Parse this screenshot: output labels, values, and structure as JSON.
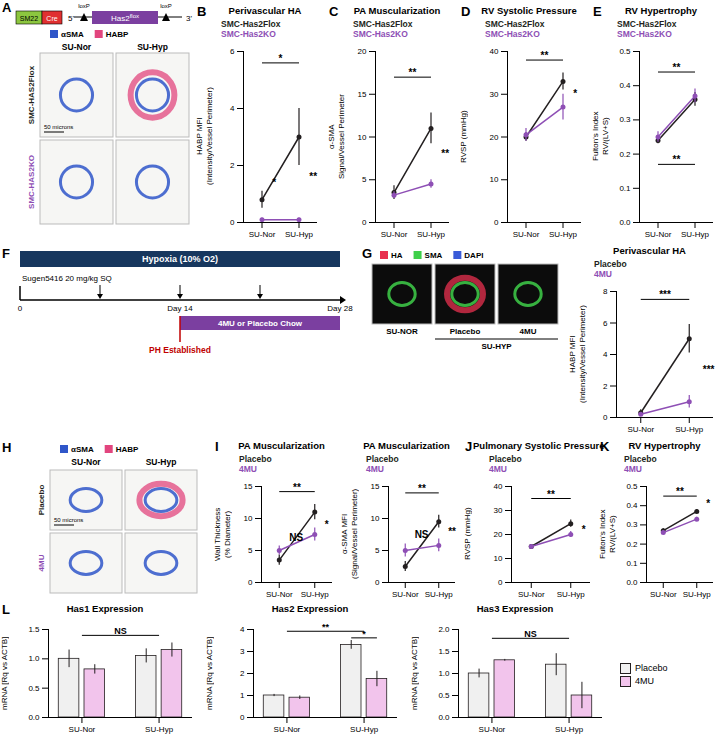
{
  "chart_data": [
    {
      "panel_label": "B",
      "type": "line",
      "title": "Perivascular HA",
      "y_label": "HABP MFI\n(Intensity/Vessel Perimeter)",
      "categories": [
        "SU-Nor",
        "SU-Hyp"
      ],
      "series": [
        {
          "name": "SMC-Has2Flox",
          "color": "#231f20",
          "values": [
            0.8,
            3.0
          ],
          "errors": [
            0.3,
            1.0
          ]
        },
        {
          "name": "SMC-Has2KO",
          "color": "#8e4fb5",
          "values": [
            0.1,
            0.1
          ],
          "errors": [
            0.05,
            0.05
          ]
        }
      ],
      "ylim": [
        0,
        6
      ],
      "yticks": [
        0,
        2,
        4,
        6
      ],
      "legend": "top-left",
      "annotations": [
        {
          "text": "*",
          "x": [
            "SU-Nor",
            "SU-Hyp"
          ],
          "y": 5.6
        },
        {
          "text": "*",
          "x": [
            "SU-Nor",
            "SU-Nor"
          ],
          "y": 1.4
        },
        {
          "text": "**",
          "x": [
            "SU-Hyp",
            "SU-Hyp"
          ],
          "y": 1.6
        }
      ]
    },
    {
      "panel_label": "C",
      "type": "line",
      "title": "PA Muscularization",
      "y_label": "α-SMA\nSignal/Vessel Perimeter",
      "categories": [
        "SU-Nor",
        "SU-Hyp"
      ],
      "series": [
        {
          "name": "SMC-Has2Flox",
          "color": "#231f20",
          "values": [
            3.5,
            11
          ],
          "errors": [
            0.8,
            1.8
          ]
        },
        {
          "name": "SMC-Has2KO",
          "color": "#8e4fb5",
          "values": [
            3.2,
            4.5
          ],
          "errors": [
            0.4,
            0.5
          ]
        }
      ],
      "ylim": [
        0,
        20
      ],
      "yticks": [
        0,
        5,
        10,
        15,
        20
      ],
      "legend": "top-left",
      "annotations": [
        {
          "text": "**",
          "x": [
            "SU-Nor",
            "SU-Hyp"
          ],
          "y": 17
        },
        {
          "text": "**",
          "x": [
            "SU-Hyp",
            "SU-Hyp"
          ],
          "y": 8
        }
      ]
    },
    {
      "panel_label": "D",
      "type": "line",
      "title": "RV Systolic Pressure",
      "y_label": "RVSP (mmHg)",
      "categories": [
        "SU-Nor",
        "SU-Hyp"
      ],
      "series": [
        {
          "name": "SMC-Has2Flox",
          "color": "#231f20",
          "values": [
            20,
            33
          ],
          "errors": [
            1,
            2
          ]
        },
        {
          "name": "SMC-Has2KO",
          "color": "#8e4fb5",
          "values": [
            20.5,
            27
          ],
          "errors": [
            1.5,
            3
          ]
        }
      ],
      "ylim": [
        0,
        40
      ],
      "yticks": [
        0,
        10,
        20,
        30,
        40
      ],
      "legend": "top-left",
      "annotations": [
        {
          "text": "**",
          "x": [
            "SU-Nor",
            "SU-Hyp"
          ],
          "y": 38
        },
        {
          "text": "*",
          "x": [
            "SU-Hyp",
            "SU-Hyp"
          ],
          "y": 30
        }
      ]
    },
    {
      "panel_label": "E",
      "type": "line",
      "title": "RV Hypertrophy",
      "y_label": "Fulton's Index\nRV/(LV+S)",
      "categories": [
        "SU-Nor",
        "SU-Hyp"
      ],
      "series": [
        {
          "name": "SMC-Has2Flox",
          "color": "#231f20",
          "values": [
            0.24,
            0.36
          ],
          "errors": [
            0.01,
            0.02
          ]
        },
        {
          "name": "SMC-Has2KO",
          "color": "#8e4fb5",
          "values": [
            0.25,
            0.37
          ],
          "errors": [
            0.015,
            0.02
          ]
        }
      ],
      "ylim": [
        0,
        0.5
      ],
      "yticks": [
        {
          "value": 0,
          "label": "0.0"
        },
        0.1,
        0.2,
        0.3,
        0.4,
        0.5
      ],
      "legend": "top-left",
      "annotations": [
        {
          "text": "**",
          "x": [
            "SU-Nor",
            "SU-Hyp"
          ],
          "y": 0.44
        },
        {
          "text": "**",
          "x": [
            "SU-Nor",
            "SU-Hyp"
          ],
          "y": 0.17
        }
      ]
    },
    {
      "type": "line",
      "title": "Perivascular HA",
      "y_label": "HABP MFI\n(Intensity/Vessel Perimeter)",
      "categories": [
        "SU-Nor",
        "SU-Hyp"
      ],
      "series": [
        {
          "name": "Placebo",
          "color": "#231f20",
          "values": [
            0.3,
            5.0
          ],
          "errors": [
            0.2,
            0.9
          ]
        },
        {
          "name": "4MU",
          "color": "#8e4fb5",
          "values": [
            0.2,
            1.0
          ],
          "errors": [
            0.1,
            0.4
          ]
        }
      ],
      "ylim": [
        0,
        8
      ],
      "yticks": [
        0,
        2,
        4,
        6,
        8
      ],
      "legend": "top-left",
      "annotations": [
        {
          "text": "***",
          "x": [
            "SU-Nor",
            "SU-Hyp"
          ],
          "y": 7.5
        },
        {
          "text": "***",
          "x": [
            "SU-Hyp",
            "SU-Hyp"
          ],
          "y": 3
        }
      ]
    },
    {
      "panel_label": "I",
      "type": "line",
      "title": "PA Muscularization",
      "y_label": "Wall Thickness\n(% Diameter)",
      "categories": [
        "SU-Nor",
        "SU-Hyp"
      ],
      "series": [
        {
          "name": "Placebo",
          "color": "#231f20",
          "values": [
            3.5,
            11
          ],
          "errors": [
            0.8,
            1.2
          ]
        },
        {
          "name": "4MU",
          "color": "#8e4fb5",
          "values": [
            5,
            7.5
          ],
          "errors": [
            0.7,
            1.0
          ]
        }
      ],
      "ylim": [
        0,
        15
      ],
      "yticks": [
        0,
        5,
        10,
        15
      ],
      "legend": "top-left",
      "annotations": [
        {
          "text": "NS",
          "x": [
            "SU-Nor",
            "SU-Nor"
          ],
          "y": 7
        },
        {
          "text": "**",
          "x": [
            "SU-Nor",
            "SU-Hyp"
          ],
          "y": 14.2
        },
        {
          "text": "*",
          "x": [
            "SU-Hyp",
            "SU-Hyp"
          ],
          "y": 9
        }
      ]
    },
    {
      "type": "line",
      "title": "PA Muscularization",
      "y_label": "α-SMA MFI\n(Signal/Vessel Perimeter)",
      "categories": [
        "SU-Nor",
        "SU-Hyp"
      ],
      "series": [
        {
          "name": "Placebo",
          "color": "#231f20",
          "values": [
            2.5,
            9.5
          ],
          "errors": [
            0.8,
            1.0
          ]
        },
        {
          "name": "4MU",
          "color": "#8e4fb5",
          "values": [
            5,
            5.8
          ],
          "errors": [
            1,
            1
          ]
        }
      ],
      "ylim": [
        0,
        15
      ],
      "yticks": [
        0,
        5,
        10,
        15
      ],
      "legend": "top-left",
      "annotations": [
        {
          "text": "NS",
          "x": [
            "SU-Nor",
            "SU-Nor"
          ],
          "y": 7.5
        },
        {
          "text": "**",
          "x": [
            "SU-Nor",
            "SU-Hyp"
          ],
          "y": 14
        },
        {
          "text": "**",
          "x": [
            "SU-Hyp",
            "SU-Hyp"
          ],
          "y": 8
        }
      ]
    },
    {
      "panel_label": "J",
      "type": "line",
      "title": "Pulmonary Systolic Pressure",
      "y_label": "RVSP (mmHg)",
      "categories": [
        "SU-Nor",
        "SU-Hyp"
      ],
      "series": [
        {
          "name": "Placebo",
          "color": "#231f20",
          "values": [
            15,
            24.5
          ],
          "errors": [
            0.8,
            1.5
          ]
        },
        {
          "name": "4MU",
          "color": "#8e4fb5",
          "values": [
            15,
            20
          ],
          "errors": [
            0.8,
            1.2
          ]
        }
      ],
      "ylim": [
        0,
        40
      ],
      "yticks": [
        0,
        10,
        20,
        30,
        40
      ],
      "legend": "top-left",
      "annotations": [
        {
          "text": "**",
          "x": [
            "SU-Nor",
            "SU-Hyp"
          ],
          "y": 35
        },
        {
          "text": "*",
          "x": [
            "SU-Hyp",
            "SU-Hyp"
          ],
          "y": 22
        }
      ]
    },
    {
      "panel_label": "K",
      "type": "line",
      "title": "RV Hypertrophy",
      "y_label": "Fulton's Index\nRV/(LV+S)",
      "categories": [
        "SU-Nor",
        "SU-Hyp"
      ],
      "series": [
        {
          "name": "Placebo",
          "color": "#231f20",
          "values": [
            0.27,
            0.37
          ],
          "errors": [
            0.01,
            0.01
          ]
        },
        {
          "name": "4MU",
          "color": "#8e4fb5",
          "values": [
            0.26,
            0.33
          ],
          "errors": [
            0.01,
            0.01
          ]
        }
      ],
      "ylim": [
        0,
        0.5
      ],
      "yticks": [
        {
          "value": 0,
          "label": "0.0"
        },
        0.1,
        0.2,
        0.3,
        0.4,
        0.5
      ],
      "legend": "top-left",
      "annotations": [
        {
          "text": "**",
          "x": [
            "SU-Nor",
            "SU-Hyp"
          ],
          "y": 0.45
        },
        {
          "text": "*",
          "x": [
            "SU-Hyp",
            "SU-Hyp"
          ],
          "y": 0.41
        }
      ]
    },
    {
      "panel_label": "L",
      "type": "bar",
      "title": "Has1 Expression",
      "y_label": "mRNA [Rq vs ACTB]",
      "categories": [
        "SU-Nor",
        "SU-Hyp"
      ],
      "series": [
        {
          "name": "Placebo",
          "color": "#f0f0f0",
          "values": [
            1.0,
            1.05
          ],
          "errors": [
            0.15,
            0.12
          ]
        },
        {
          "name": "4MU",
          "color": "#f2c4ec",
          "values": [
            0.82,
            1.15
          ],
          "errors": [
            0.08,
            0.12
          ]
        }
      ],
      "ylim": [
        0,
        1.5
      ],
      "yticks": [
        {
          "value": 0,
          "label": "0.0"
        },
        0.5,
        {
          "value": 1,
          "label": "1.0"
        },
        1.5
      ],
      "annotations": [
        {
          "text": "NS",
          "x": [
            "SU-Nor",
            "SU-Hyp"
          ],
          "y": 1.4
        }
      ]
    },
    {
      "type": "bar",
      "title": "Has2 Expression",
      "y_label": "mRNA [Rq vs ACTB]",
      "categories": [
        "SU-Nor",
        "SU-Hyp"
      ],
      "series": [
        {
          "name": "Placebo",
          "color": "#f0f0f0",
          "values": [
            1.0,
            3.3
          ],
          "errors": [
            0.05,
            0.2
          ]
        },
        {
          "name": "4MU",
          "color": "#f2c4ec",
          "values": [
            0.9,
            1.75
          ],
          "errors": [
            0.08,
            0.35
          ]
        }
      ],
      "ylim": [
        0,
        4
      ],
      "yticks": [
        0,
        1,
        2,
        3,
        4
      ],
      "annotations": [
        {
          "text": "**",
          "x": [
            "SU-Nor",
            "SU-Hyp"
          ],
          "y": 3.92
        },
        {
          "text": "*",
          "x": [
            "SU-Hyp",
            "SU-Hyp"
          ],
          "y": 3.62
        }
      ]
    },
    {
      "type": "bar",
      "title": "Has3 Expression",
      "y_label": "mRNA [Rq vs ACTB]",
      "categories": [
        "SU-Nor",
        "SU-Hyp"
      ],
      "series": [
        {
          "name": "Placebo",
          "color": "#f0f0f0",
          "values": [
            1.0,
            1.2
          ],
          "errors": [
            0.1,
            0.25
          ]
        },
        {
          "name": "4MU",
          "color": "#f2c4ec",
          "values": [
            1.3,
            0.5
          ],
          "errors": [
            0.02,
            0.3
          ]
        }
      ],
      "ylim": [
        0,
        2
      ],
      "yticks": [
        {
          "value": 0,
          "label": "0.0"
        },
        0.5,
        {
          "value": 1,
          "label": "1.0"
        },
        1.5,
        {
          "value": 2,
          "label": "2.0"
        }
      ],
      "legend": "right",
      "annotations": [
        {
          "text": "NS",
          "x": [
            "SU-Nor",
            "SU-Hyp"
          ],
          "y": 1.8
        }
      ]
    }
  ],
  "figure": {
    "panel_A": {
      "panel_label": "A",
      "construct": {
        "promoter": "SM22",
        "recombinase": "Cre",
        "five_prime": "5'",
        "gene": "Has2",
        "gene_superscript": "flox",
        "loxp_labels": [
          "loxP",
          "loxP"
        ],
        "three_prime": "3'"
      },
      "stain_legend": [
        {
          "name": "αSMA",
          "color": "#2f56c9"
        },
        {
          "name": "HABP",
          "color": "#e2457e"
        }
      ],
      "columns": [
        "SU-Nor",
        "SU-Hyp"
      ],
      "rows": [
        {
          "name": "SMC-HAS2Flox",
          "color": "#231f20"
        },
        {
          "name": "SMC-HAS2KO",
          "color": "#8e4fb5"
        }
      ],
      "scale_bar": "50 microns"
    },
    "panel_F": {
      "panel_label": "F",
      "hypoxia": "Hypoxia (10% O2)",
      "sugen": "Sugen5416 20 mg/kg SQ",
      "days": [
        {
          "value": 0,
          "label": "0"
        },
        {
          "value": 14,
          "label": "Day 14"
        },
        {
          "value": 28,
          "label": "Day 28"
        }
      ],
      "injection_days": [
        7,
        14,
        21
      ],
      "treatment": "4MU or Placebo Chow",
      "treatment_start": 14,
      "event": "PH Established"
    },
    "panel_G": {
      "panel_label": "G",
      "stain_legend": [
        {
          "name": "HA",
          "color": "#e8304f"
        },
        {
          "name": "SMA",
          "color": "#3fcf4a"
        },
        {
          "name": "DAPI",
          "color": "#3a5bd8"
        }
      ],
      "images": [
        "SU-NOR",
        "Placebo",
        "4MU"
      ],
      "group_label": "SU-HYP"
    },
    "panel_H": {
      "panel_label": "H",
      "stain_legend": [
        {
          "name": "αSMA",
          "color": "#2f56c9"
        },
        {
          "name": "HABP",
          "color": "#e2457e"
        }
      ],
      "columns": [
        "SU-Nor",
        "SU-Hyp"
      ],
      "rows": [
        {
          "name": "Placebo",
          "color": "#231f20"
        },
        {
          "name": "4MU",
          "color": "#8e4fb5"
        }
      ],
      "scale_bar": "50 microns"
    }
  }
}
